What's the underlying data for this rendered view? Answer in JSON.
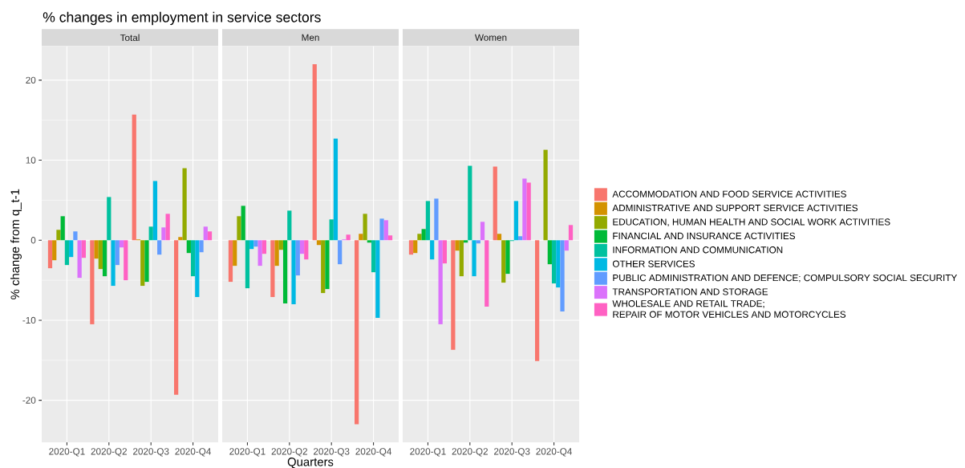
{
  "chart_data": [
    {
      "type": "bar",
      "title": "% changes in employment in service sectors",
      "subtitle": "Total",
      "ylabel": "% change from q_t-1",
      "categories": [
        "2020-Q1",
        "2020-Q2",
        "2020-Q3",
        "2020-Q4"
      ],
      "series": [
        {
          "color": "#F8766D",
          "values": [
            -3.5,
            -10.5,
            15.7,
            -19.3
          ]
        },
        {
          "color": "#D39200",
          "values": [
            -2.5,
            -2.3,
            0.1,
            0.4
          ]
        },
        {
          "color": "#93AA00",
          "values": [
            1.3,
            -3.6,
            -5.7,
            9.0
          ]
        },
        {
          "color": "#00BA38",
          "values": [
            3.0,
            -4.5,
            -5.2,
            -1.6
          ]
        },
        {
          "color": "#00C19F",
          "values": [
            -3.1,
            5.4,
            1.7,
            -4.5
          ]
        },
        {
          "color": "#00B9E3",
          "values": [
            -2.1,
            -5.7,
            7.4,
            -7.1
          ]
        },
        {
          "color": "#619CFF",
          "values": [
            1.1,
            -3.1,
            -1.8,
            -1.5
          ]
        },
        {
          "color": "#DB72FB",
          "values": [
            -4.7,
            -0.9,
            1.6,
            1.7
          ]
        },
        {
          "color": "#FF61C3",
          "values": [
            -2.2,
            -5.0,
            3.3,
            1.1
          ]
        }
      ],
      "ylim": [
        -25.25,
        24.25
      ],
      "yticks": [
        -20,
        -10,
        0,
        10,
        20
      ],
      "grid": true
    },
    {
      "type": "bar",
      "subtitle": "Men",
      "xlabel": "Quarters",
      "categories": [
        "2020-Q1",
        "2020-Q2",
        "2020-Q3",
        "2020-Q4"
      ],
      "series": [
        {
          "color": "#F8766D",
          "values": [
            -5.2,
            -7.1,
            22.0,
            -23.0
          ]
        },
        {
          "color": "#D39200",
          "values": [
            -3.2,
            -3.2,
            -0.6,
            0.8
          ]
        },
        {
          "color": "#93AA00",
          "values": [
            3.0,
            -1.2,
            -6.6,
            3.3
          ]
        },
        {
          "color": "#00BA38",
          "values": [
            4.3,
            -7.9,
            -6.1,
            -0.3
          ]
        },
        {
          "color": "#00C19F",
          "values": [
            -6.0,
            3.7,
            2.6,
            -4.0
          ]
        },
        {
          "color": "#00B9E3",
          "values": [
            -1.1,
            -8.0,
            12.7,
            -9.7
          ]
        },
        {
          "color": "#619CFF",
          "values": [
            -0.8,
            -4.4,
            -3.0,
            2.7
          ]
        },
        {
          "color": "#DB72FB",
          "values": [
            -3.2,
            -1.7,
            0.1,
            2.5
          ]
        },
        {
          "color": "#FF61C3",
          "values": [
            -1.7,
            -2.4,
            0.7,
            0.6
          ]
        }
      ],
      "ylim": [
        -25.25,
        24.25
      ],
      "yticks": [
        -20,
        -10,
        0,
        10,
        20
      ],
      "grid": true,
      "tick_labels": "x"
    },
    {
      "type": "bar",
      "subtitle": "Women",
      "categories": [
        "2020-Q1",
        "2020-Q2",
        "2020-Q3",
        "2020-Q4"
      ],
      "series": [
        {
          "name": "ACCOMMODATION AND FOOD SERVICE ACTIVITIES",
          "color": "#F8766D",
          "values": [
            -1.8,
            -13.7,
            9.2,
            -15.1
          ]
        },
        {
          "name": "ADMINISTRATIVE AND SUPPORT SERVICE ACTIVITIES",
          "color": "#D39200",
          "values": [
            -1.6,
            -1.3,
            0.8,
            null
          ]
        },
        {
          "name": "EDUCATION, HUMAN HEALTH AND SOCIAL WORK ACTIVITIES",
          "color": "#93AA00",
          "values": [
            0.8,
            -4.5,
            -5.3,
            11.3
          ]
        },
        {
          "name": "FINANCIAL AND INSURANCE ACTIVITIES",
          "color": "#00BA38",
          "values": [
            1.4,
            -0.3,
            -4.2,
            -3.0
          ]
        },
        {
          "name": "INFORMATION AND COMMUNICATION",
          "color": "#00C19F",
          "values": [
            4.9,
            9.3,
            -0.1,
            -5.4
          ]
        },
        {
          "name": "OTHER SERVICES",
          "color": "#00B9E3",
          "values": [
            -2.4,
            -4.5,
            4.9,
            -5.9
          ]
        },
        {
          "name": "PUBLIC ADMINISTRATION AND DEFENCE; COMPULSORY SOCIAL SECURITY",
          "color": "#619CFF",
          "values": [
            5.2,
            -0.4,
            0.5,
            -8.9
          ]
        },
        {
          "name": "TRANSPORTATION AND STORAGE",
          "color": "#DB72FB",
          "values": [
            -10.5,
            2.3,
            7.7,
            -1.3
          ]
        },
        {
          "name": "WHOLESALE AND RETAIL TRADE;\nREPAIR OF MOTOR VEHICLES AND MOTORCYCLES",
          "color": "#FF61C3",
          "values": [
            -2.9,
            -8.3,
            7.2,
            1.9
          ]
        }
      ],
      "ylim": [
        -25.25,
        24.25
      ],
      "yticks": [
        -20,
        -10,
        0,
        10,
        20
      ],
      "grid": true,
      "tick_labels": "x",
      "legend": "right"
    }
  ]
}
